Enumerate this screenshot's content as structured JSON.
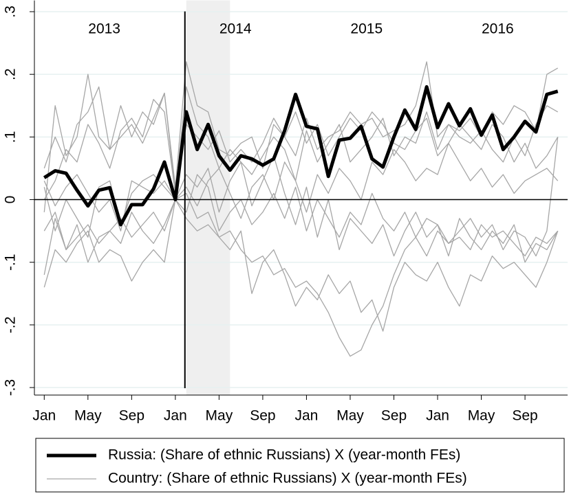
{
  "chart_data": {
    "type": "line",
    "x": [
      0,
      1,
      2,
      3,
      4,
      5,
      6,
      7,
      8,
      9,
      10,
      11,
      12,
      13,
      14,
      15,
      16,
      17,
      18,
      19,
      20,
      21,
      22,
      23,
      24,
      25,
      26,
      27,
      28,
      29,
      30,
      31,
      32,
      33,
      34,
      35,
      36,
      37,
      38,
      39,
      40,
      41,
      42,
      43,
      44,
      45,
      46,
      47
    ],
    "xlim": [
      -0.9,
      47.9
    ],
    "xticks": [
      {
        "value": 0,
        "label": "Jan"
      },
      {
        "value": 4,
        "label": "May"
      },
      {
        "value": 8,
        "label": "Sep"
      },
      {
        "value": 12,
        "label": "Jan"
      },
      {
        "value": 16,
        "label": "May"
      },
      {
        "value": 20,
        "label": "Sep"
      },
      {
        "value": 24,
        "label": "Jan"
      },
      {
        "value": 28,
        "label": "May"
      },
      {
        "value": 32,
        "label": "Sep"
      },
      {
        "value": 36,
        "label": "Jan"
      },
      {
        "value": 40,
        "label": "May"
      },
      {
        "value": 44,
        "label": "Sep"
      }
    ],
    "ylim": [
      -0.312,
      0.318
    ],
    "yticks": [
      {
        "value": -0.3,
        "label": "-.3"
      },
      {
        "value": -0.2,
        "label": "-.2"
      },
      {
        "value": -0.1,
        "label": "-.1"
      },
      0,
      {
        "value": 0.1,
        "label": ".1"
      },
      {
        "value": 0.2,
        "label": ".2"
      },
      {
        "value": 0.3,
        "label": ".3"
      }
    ],
    "grid": true,
    "year_labels": [
      "2013",
      "2014",
      "2015",
      "2016"
    ],
    "hline": 0,
    "vline": 13,
    "shade": [
      13,
      17
    ],
    "series": [
      {
        "name": "Russia: (Share of ethnic Russians) X (year-month FEs)",
        "color": "#000000",
        "values": [
          0.035,
          0.046,
          0.042,
          0.015,
          -0.01,
          0.015,
          0.019,
          -0.04,
          -0.008,
          -0.008,
          0.017,
          0.06,
          0.0,
          0.14,
          0.08,
          0.12,
          0.07,
          0.047,
          0.07,
          0.065,
          0.055,
          0.065,
          0.11,
          0.168,
          0.117,
          0.113,
          0.037,
          0.095,
          0.098,
          0.117,
          0.065,
          0.052,
          0.1,
          0.143,
          0.112,
          0.18,
          0.115,
          0.153,
          0.118,
          0.145,
          0.103,
          0.135,
          0.08,
          0.1,
          0.125,
          0.108,
          0.168,
          0.173
        ]
      },
      {
        "name": "Country: (Share of ethnic Russians) X (year-month FEs)",
        "color": "#a6a6a6",
        "lines": [
          [
            -0.02,
            0.15,
            0.07,
            0.1,
            0.2,
            0.1,
            0.08,
            0.15,
            0.1,
            0.14,
            0.12,
            0.17,
            0.02,
            0.22,
            0.15,
            0.14,
            0.08,
            0.07,
            0.09,
            0.1,
            0.05,
            0.12,
            0.1,
            0.07,
            0.13,
            0.08,
            0.1,
            0.11,
            0.14,
            0.12,
            0.13,
            0.1,
            0.11,
            0.12,
            0.15,
            0.22,
            0.1,
            0.12,
            0.11,
            0.13,
            0.1,
            0.14,
            0.12,
            0.15,
            0.14,
            0.11,
            0.2,
            0.21
          ],
          [
            0.05,
            0.1,
            0.06,
            0.12,
            0.14,
            0.18,
            0.08,
            0.1,
            0.12,
            0.09,
            0.13,
            0.17,
            0.01,
            0.18,
            0.12,
            0.1,
            0.05,
            0.08,
            0.06,
            0.04,
            0.07,
            0.1,
            0.08,
            0.03,
            0.11,
            0.06,
            0.09,
            0.12,
            0.06,
            0.08,
            0.1,
            0.13,
            0.07,
            0.1,
            0.09,
            0.14,
            0.08,
            0.12,
            0.1,
            0.09,
            0.11,
            0.08,
            0.06,
            0.1,
            0.07,
            0.12,
            0.15,
            0.14
          ],
          [
            0.02,
            -0.05,
            0.0,
            -0.03,
            -0.06,
            0.02,
            0.03,
            -0.04,
            0.01,
            0.03,
            0.04,
            0.02,
            0.0,
            -0.02,
            0.04,
            0.02,
            -0.05,
            -0.02,
            0.0,
            -0.04,
            -0.02,
            0.01,
            -0.03,
            0.02,
            -0.05,
            0.0,
            -0.03,
            -0.06,
            -0.02,
            -0.04,
            0.01,
            -0.03,
            -0.05,
            -0.02,
            -0.06,
            -0.03,
            -0.04,
            -0.07,
            -0.05,
            -0.03,
            -0.06,
            -0.04,
            -0.08,
            -0.05,
            -0.06,
            -0.09,
            -0.05,
            0.1
          ],
          [
            -0.05,
            -0.02,
            -0.08,
            -0.06,
            -0.04,
            -0.07,
            -0.05,
            -0.03,
            -0.06,
            -0.04,
            -0.02,
            -0.05,
            0.0,
            0.01,
            -0.03,
            -0.02,
            -0.06,
            -0.05,
            -0.08,
            -0.1,
            -0.09,
            -0.12,
            -0.11,
            -0.14,
            -0.13,
            -0.15,
            -0.18,
            -0.22,
            -0.25,
            -0.24,
            -0.2,
            -0.17,
            -0.12,
            -0.08,
            -0.06,
            -0.09,
            -0.05,
            -0.07,
            -0.06,
            -0.08,
            -0.04,
            -0.06,
            -0.05,
            -0.07,
            -0.09,
            -0.06,
            -0.07,
            -0.05
          ],
          [
            -0.14,
            -0.08,
            -0.1,
            -0.07,
            -0.05,
            -0.1,
            -0.08,
            -0.09,
            -0.13,
            -0.1,
            -0.08,
            -0.1,
            0.0,
            -0.03,
            -0.05,
            -0.04,
            -0.06,
            -0.08,
            -0.05,
            -0.15,
            -0.1,
            -0.08,
            -0.12,
            -0.17,
            -0.14,
            -0.16,
            -0.12,
            -0.15,
            -0.13,
            -0.18,
            -0.16,
            -0.21,
            -0.14,
            -0.1,
            -0.12,
            -0.13,
            -0.1,
            -0.14,
            -0.17,
            -0.12,
            -0.13,
            -0.09,
            -0.11,
            -0.1,
            -0.12,
            -0.14,
            -0.1,
            -0.05
          ],
          [
            -0.12,
            -0.03,
            -0.08,
            -0.04,
            -0.1,
            -0.06,
            -0.05,
            -0.07,
            -0.02,
            -0.05,
            -0.07,
            -0.04,
            0.0,
            0.04,
            0.02,
            0.05,
            -0.02,
            0.03,
            0.06,
            -0.01,
            0.03,
            0.07,
            0.01,
            -0.04,
            0.02,
            -0.06,
            0.0,
            -0.08,
            -0.03,
            -0.05,
            -0.07,
            -0.04,
            -0.09,
            -0.05,
            -0.02,
            -0.06,
            -0.04,
            -0.09,
            -0.03,
            -0.06,
            -0.08,
            -0.05,
            -0.07,
            -0.04,
            -0.1,
            -0.07,
            -0.08,
            -0.05
          ],
          [
            0.0,
            0.03,
            0.08,
            0.06,
            0.12,
            0.09,
            0.05,
            0.11,
            0.13,
            0.1,
            0.16,
            0.14,
            0.01,
            0.12,
            0.1,
            0.08,
            0.11,
            0.06,
            0.08,
            0.06,
            0.09,
            0.13,
            0.1,
            0.14,
            0.09,
            0.12,
            0.07,
            0.1,
            0.13,
            0.11,
            0.14,
            0.12,
            0.09,
            0.08,
            0.11,
            0.13,
            0.07,
            0.09,
            0.12,
            0.1,
            0.08,
            0.12,
            0.1,
            0.06,
            0.09,
            0.05,
            0.07,
            0.1
          ],
          [
            0.03,
            -0.01,
            0.02,
            0.04,
            0.01,
            -0.02,
            0.0,
            -0.05,
            0.03,
            0.02,
            0.01,
            0.03,
            0.0,
            0.02,
            -0.01,
            0.03,
            0.05,
            0.01,
            -0.03,
            0.02,
            0.04,
            0.0,
            0.06,
            0.03,
            -0.02,
            0.04,
            0.01,
            0.05,
            0.03,
            0.0,
            0.06,
            0.04,
            0.08,
            0.06,
            0.03,
            0.05,
            0.04,
            0.09,
            0.06,
            0.03,
            0.05,
            0.02,
            0.04,
            0.01,
            0.03,
            0.04,
            0.05,
            0.03
          ]
        ]
      }
    ]
  }
}
